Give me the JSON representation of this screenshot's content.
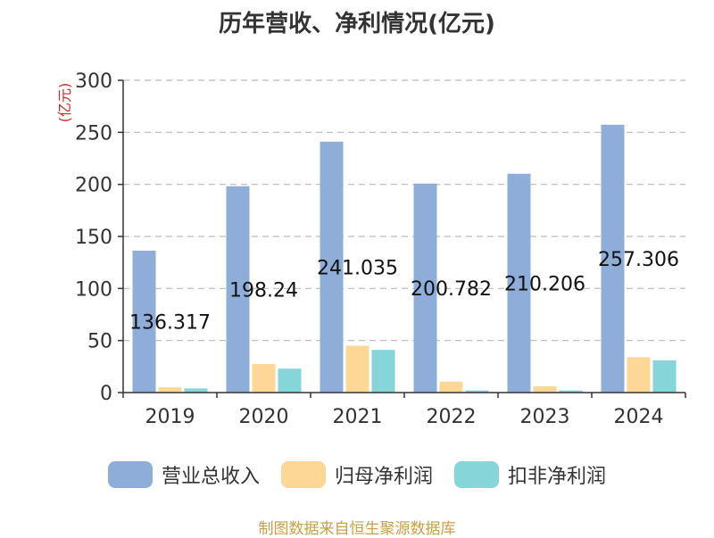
{
  "chart_data": {
    "type": "bar",
    "title": "历年营收、净利情况(亿元)",
    "ylabel": "(亿元)",
    "categories": [
      "2019",
      "2020",
      "2021",
      "2022",
      "2023",
      "2024"
    ],
    "ylim": [
      0,
      300
    ],
    "yticks": [
      0,
      50,
      100,
      150,
      200,
      250,
      300
    ],
    "grid": true,
    "legend_position": "bottom",
    "series": [
      {
        "name": "营业总收入",
        "color": "#8eadd9",
        "values": [
          136.317,
          198.24,
          241.035,
          200.782,
          210.206,
          257.306
        ],
        "labels": [
          "136.317",
          "198.24",
          "241.035",
          "200.782",
          "210.206",
          "257.306"
        ]
      },
      {
        "name": "归母净利润",
        "color": "#fdd795",
        "values": [
          5,
          27.5,
          45,
          10.5,
          6,
          34
        ]
      },
      {
        "name": "扣非净利润",
        "color": "#86d5d8",
        "values": [
          4,
          23,
          41,
          2,
          2,
          31
        ]
      }
    ]
  },
  "footer": {
    "source": "制图数据来自恒生聚源数据库"
  }
}
